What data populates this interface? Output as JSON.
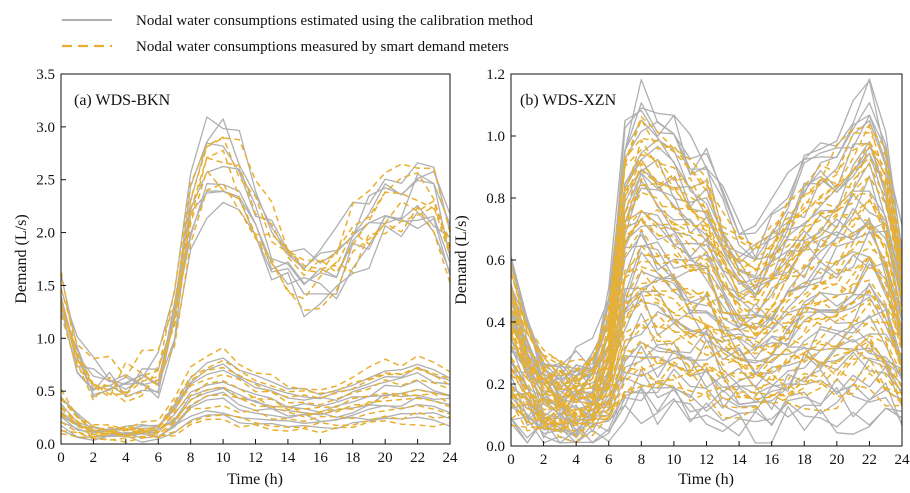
{
  "colors": {
    "estimated": "#b0b0b0",
    "measured": "#e8b030",
    "axis": "#111111",
    "background": "#ffffff"
  },
  "legend": {
    "estimated_label": "Nodal water consumptions  estimated using the calibration method",
    "measured_label": "Nodal water consumptions  measured by smart demand meters",
    "placement": "top"
  },
  "chart_data": [
    {
      "type": "line",
      "panel_label": "(a) WDS-BKN",
      "xlabel": "Time (h)",
      "ylabel": "Demand (L/s)",
      "xlim": [
        0,
        24
      ],
      "ylim": [
        0,
        3.5
      ],
      "xticks": [
        0,
        2,
        4,
        6,
        8,
        10,
        12,
        14,
        16,
        18,
        20,
        22,
        24
      ],
      "yticks": [
        0.0,
        0.5,
        1.0,
        1.5,
        2.0,
        2.5,
        3.0,
        3.5
      ],
      "ytick_labels": [
        "0.0",
        "0.5",
        "1.0",
        "1.5",
        "2.0",
        "2.5",
        "3.0",
        "3.5"
      ],
      "grid": false,
      "x": [
        0,
        1,
        2,
        3,
        4,
        5,
        6,
        7,
        8,
        9,
        10,
        11,
        12,
        13,
        14,
        15,
        16,
        17,
        18,
        19,
        20,
        21,
        22,
        23,
        24
      ],
      "profile_high": [
        1.4,
        0.8,
        0.6,
        0.6,
        0.6,
        0.65,
        0.7,
        1.2,
        2.2,
        2.6,
        2.7,
        2.5,
        2.2,
        1.9,
        1.7,
        1.6,
        1.6,
        1.7,
        1.9,
        2.1,
        2.2,
        2.3,
        2.4,
        2.3,
        1.9
      ],
      "profile_low": [
        0.35,
        0.2,
        0.12,
        0.12,
        0.12,
        0.13,
        0.15,
        0.3,
        0.5,
        0.6,
        0.65,
        0.55,
        0.5,
        0.45,
        0.4,
        0.38,
        0.38,
        0.4,
        0.45,
        0.5,
        0.55,
        0.55,
        0.6,
        0.55,
        0.5
      ],
      "series": [
        {
          "group": "estimated",
          "profile": "high",
          "scale": 1.0
        },
        {
          "group": "estimated",
          "profile": "high",
          "scale": 0.92
        },
        {
          "group": "estimated",
          "profile": "high",
          "scale": 1.08
        },
        {
          "group": "estimated",
          "profile": "high",
          "scale": 0.86
        },
        {
          "group": "estimated",
          "profile": "high",
          "scale": 1.14
        },
        {
          "group": "estimated",
          "profile": "high",
          "scale": 0.96
        },
        {
          "group": "estimated",
          "profile": "high",
          "scale": 1.04
        },
        {
          "group": "estimated",
          "profile": "high",
          "scale": 0.9
        },
        {
          "group": "measured",
          "profile": "high",
          "scale": 1.02
        },
        {
          "group": "measured",
          "profile": "high",
          "scale": 0.94
        },
        {
          "group": "measured",
          "profile": "high",
          "scale": 1.12
        },
        {
          "group": "measured",
          "profile": "high",
          "scale": 0.88
        },
        {
          "group": "measured",
          "profile": "high",
          "scale": 1.07
        },
        {
          "group": "measured",
          "profile": "high",
          "scale": 0.98
        },
        {
          "group": "estimated",
          "profile": "low",
          "scale": 1.3
        },
        {
          "group": "estimated",
          "profile": "low",
          "scale": 1.1
        },
        {
          "group": "estimated",
          "profile": "low",
          "scale": 0.95
        },
        {
          "group": "estimated",
          "profile": "low",
          "scale": 0.8
        },
        {
          "group": "estimated",
          "profile": "low",
          "scale": 0.65
        },
        {
          "group": "estimated",
          "profile": "low",
          "scale": 0.5
        },
        {
          "group": "estimated",
          "profile": "low",
          "scale": 0.4
        },
        {
          "group": "estimated",
          "profile": "low",
          "scale": 1.2
        },
        {
          "group": "estimated",
          "profile": "low",
          "scale": 0.85
        },
        {
          "group": "estimated",
          "profile": "low",
          "scale": 0.7
        },
        {
          "group": "measured",
          "profile": "low",
          "scale": 1.25
        },
        {
          "group": "measured",
          "profile": "low",
          "scale": 1.05
        },
        {
          "group": "measured",
          "profile": "low",
          "scale": 0.9
        },
        {
          "group": "measured",
          "profile": "low",
          "scale": 0.75
        },
        {
          "group": "measured",
          "profile": "low",
          "scale": 0.6
        },
        {
          "group": "measured",
          "profile": "low",
          "scale": 0.45
        },
        {
          "group": "measured",
          "profile": "low",
          "scale": 1.4
        },
        {
          "group": "measured",
          "profile": "low",
          "scale": 0.35
        },
        {
          "group": "measured",
          "profile": "low",
          "scale": 1.15
        },
        {
          "group": "measured",
          "profile": "low",
          "scale": 0.82
        }
      ]
    },
    {
      "type": "line",
      "panel_label": "(b) WDS-XZN",
      "xlabel": "Time (h)",
      "ylabel": "Demand (L/s)",
      "xlim": [
        0,
        24
      ],
      "ylim": [
        0,
        1.2
      ],
      "xticks": [
        0,
        2,
        4,
        6,
        8,
        10,
        12,
        14,
        16,
        18,
        20,
        22,
        24
      ],
      "yticks": [
        0.0,
        0.2,
        0.4,
        0.6,
        0.8,
        1.0,
        1.2
      ],
      "ytick_labels": [
        "0.0",
        "0.2",
        "0.4",
        "0.6",
        "0.8",
        "1.0",
        "1.2"
      ],
      "grid": false,
      "x": [
        0,
        1,
        2,
        3,
        4,
        5,
        6,
        7,
        8,
        9,
        10,
        11,
        12,
        13,
        14,
        15,
        16,
        17,
        18,
        19,
        20,
        21,
        22,
        23,
        24
      ],
      "profile": [
        0.45,
        0.3,
        0.22,
        0.2,
        0.2,
        0.22,
        0.35,
        0.75,
        0.85,
        0.8,
        0.78,
        0.72,
        0.7,
        0.6,
        0.52,
        0.5,
        0.55,
        0.62,
        0.68,
        0.72,
        0.75,
        0.8,
        0.85,
        0.75,
        0.5
      ],
      "series_count": {
        "estimated": 44,
        "measured": 40
      },
      "scale_range": {
        "estimated": [
          0.12,
          1.35
        ],
        "measured": [
          0.22,
          1.25
        ]
      }
    }
  ]
}
